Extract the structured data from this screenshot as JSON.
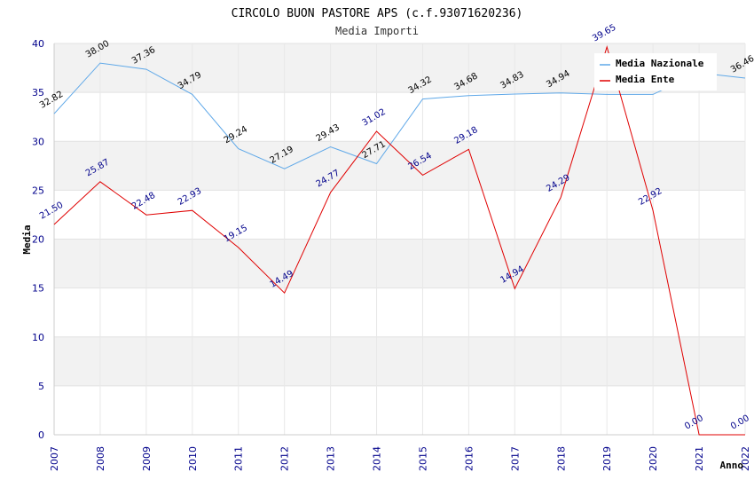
{
  "chart_data": {
    "type": "line",
    "title": "CIRCOLO BUON PASTORE APS (c.f.93071620236)",
    "subtitle": "Media Importi",
    "xlabel": "Anno",
    "ylabel": "Media",
    "ylim": [
      0,
      40
    ],
    "yticks": [
      0,
      5,
      10,
      15,
      20,
      25,
      30,
      35,
      40
    ],
    "grid": "horizontal alternating bands",
    "legend_position": "top-right",
    "categories": [
      "2007",
      "2008",
      "2009",
      "2010",
      "2011",
      "2012",
      "2013",
      "2014",
      "2015",
      "2016",
      "2017",
      "2018",
      "2019",
      "2020",
      "2021",
      "2022"
    ],
    "series": [
      {
        "name": "Media Nazionale",
        "color": "#5fa8e8",
        "label_color": "#000000",
        "values": [
          32.82,
          38.0,
          37.36,
          34.79,
          29.24,
          27.19,
          29.43,
          27.71,
          34.32,
          34.68,
          34.83,
          34.94,
          34.79,
          34.79,
          37.0,
          36.46
        ],
        "labels": [
          "32.82",
          "38.00",
          "37.36",
          "34.79",
          "29.24",
          "27.19",
          "29.43",
          "27.71",
          "34.32",
          "34.68",
          "34.83",
          "34.94",
          "",
          "",
          "",
          "36.46"
        ]
      },
      {
        "name": "Media Ente",
        "color": "#e00000",
        "label_color": "#00008b",
        "values": [
          21.5,
          25.87,
          22.48,
          22.93,
          19.15,
          14.49,
          24.77,
          31.02,
          26.54,
          29.18,
          14.94,
          24.29,
          39.65,
          22.92,
          0.0,
          0.0
        ],
        "labels": [
          "21.50",
          "25.87",
          "22.48",
          "22.93",
          "19.15",
          "14.49",
          "24.77",
          "31.02",
          "26.54",
          "29.18",
          "14.94",
          "24.29",
          "39.65",
          "22.92",
          "0.00",
          "0.00"
        ]
      }
    ]
  }
}
